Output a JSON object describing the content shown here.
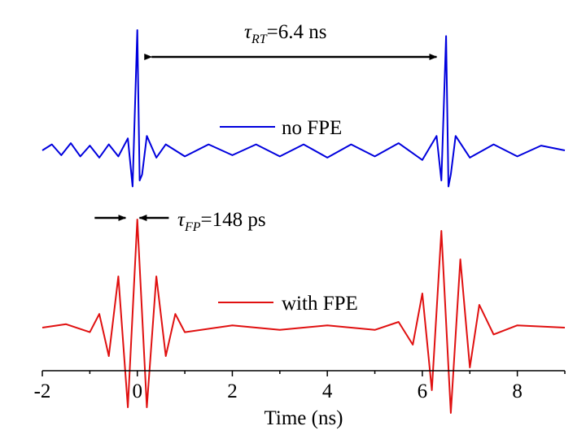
{
  "chart_data": {
    "type": "line",
    "xlabel": "Time (ns)",
    "ylabel": "",
    "xlim": [
      -2,
      9
    ],
    "x_ticks": [
      "-2",
      "0",
      "2",
      "4",
      "6",
      "8"
    ],
    "x_tick_values": [
      -2,
      0,
      2,
      4,
      6,
      8
    ],
    "y_axis_visible": false,
    "grid": false,
    "legend_position": "center",
    "annotations": [
      {
        "name": "round-trip-time",
        "symbol": "τ",
        "subscript": "RT",
        "text": "=6.4 ns",
        "from_x": 0.3,
        "to_x": 6.3
      },
      {
        "name": "fabry-perot-period",
        "symbol": "τ",
        "subscript": "FP",
        "text": "=148 ps",
        "from_x": -0.35,
        "to_x": 0.08
      }
    ],
    "series": [
      {
        "name": "no FPE",
        "color": "#0000dd",
        "points": [
          [
            -2.0,
            0.0
          ],
          [
            -1.8,
            0.05
          ],
          [
            -1.6,
            -0.04
          ],
          [
            -1.4,
            0.06
          ],
          [
            -1.2,
            -0.05
          ],
          [
            -1.0,
            0.04
          ],
          [
            -0.8,
            -0.06
          ],
          [
            -0.6,
            0.05
          ],
          [
            -0.4,
            -0.05
          ],
          [
            -0.2,
            0.1
          ],
          [
            -0.1,
            -0.3
          ],
          [
            0.0,
            1.0
          ],
          [
            0.05,
            -0.25
          ],
          [
            0.1,
            -0.2
          ],
          [
            0.2,
            0.12
          ],
          [
            0.4,
            -0.06
          ],
          [
            0.6,
            0.05
          ],
          [
            1.0,
            -0.05
          ],
          [
            1.5,
            0.05
          ],
          [
            2.0,
            -0.04
          ],
          [
            2.5,
            0.05
          ],
          [
            3.0,
            -0.05
          ],
          [
            3.5,
            0.05
          ],
          [
            4.0,
            -0.06
          ],
          [
            4.5,
            0.05
          ],
          [
            5.0,
            -0.05
          ],
          [
            5.5,
            0.06
          ],
          [
            6.0,
            -0.08
          ],
          [
            6.3,
            0.12
          ],
          [
            6.4,
            -0.25
          ],
          [
            6.5,
            0.95
          ],
          [
            6.55,
            -0.3
          ],
          [
            6.6,
            -0.2
          ],
          [
            6.7,
            0.12
          ],
          [
            7.0,
            -0.06
          ],
          [
            7.5,
            0.05
          ],
          [
            8.0,
            -0.05
          ],
          [
            8.5,
            0.04
          ],
          [
            9.0,
            0.0
          ]
        ]
      },
      {
        "name": "with FPE",
        "color": "#e01010",
        "points": [
          [
            -2.0,
            0.0
          ],
          [
            -1.5,
            0.03
          ],
          [
            -1.0,
            -0.04
          ],
          [
            -0.8,
            0.12
          ],
          [
            -0.6,
            -0.25
          ],
          [
            -0.4,
            0.45
          ],
          [
            -0.2,
            -0.7
          ],
          [
            0.0,
            0.95
          ],
          [
            0.2,
            -0.7
          ],
          [
            0.4,
            0.45
          ],
          [
            0.6,
            -0.25
          ],
          [
            0.8,
            0.12
          ],
          [
            1.0,
            -0.04
          ],
          [
            2.0,
            0.02
          ],
          [
            3.0,
            -0.02
          ],
          [
            4.0,
            0.02
          ],
          [
            5.0,
            -0.02
          ],
          [
            5.5,
            0.05
          ],
          [
            5.8,
            -0.15
          ],
          [
            6.0,
            0.3
          ],
          [
            6.2,
            -0.55
          ],
          [
            6.4,
            0.85
          ],
          [
            6.6,
            -0.75
          ],
          [
            6.8,
            0.6
          ],
          [
            7.0,
            -0.35
          ],
          [
            7.2,
            0.2
          ],
          [
            7.5,
            -0.06
          ],
          [
            8.0,
            0.02
          ],
          [
            9.0,
            0.0
          ]
        ]
      }
    ]
  }
}
